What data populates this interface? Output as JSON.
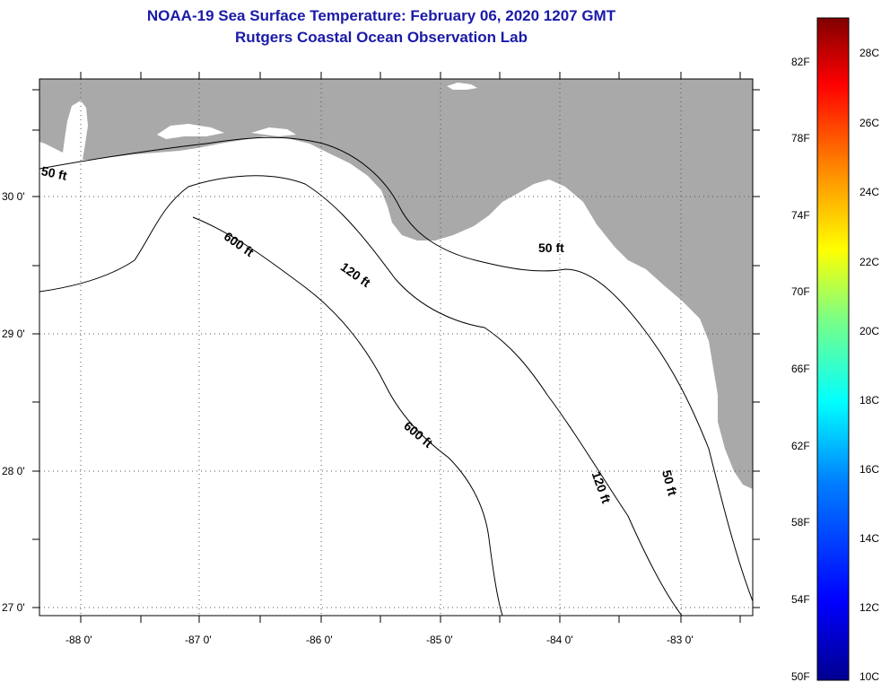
{
  "header": {
    "title": "NOAA-19 Sea Surface Temperature:  February 06, 2020 1207 GMT",
    "subtitle": "Rutgers Coastal Ocean Observation Lab"
  },
  "map": {
    "lat_ticks": [
      "30 0'",
      "29 0'",
      "28 0'",
      "27 0'"
    ],
    "lon_ticks": [
      "-88 0'",
      "-87 0'",
      "-86 0'",
      "-85 0'",
      "-84 0'",
      "-83 0'"
    ],
    "lat_values": [
      30,
      29,
      28,
      27
    ],
    "lon_values": [
      -88,
      -87,
      -86,
      -85,
      -84,
      -83
    ],
    "lon_range": [
      -88.3,
      -82.5
    ],
    "lat_range": [
      26.95,
      30.85
    ],
    "grid": "dotted",
    "depth_contour_labels": [
      "50 ft",
      "600 ft",
      "120 ft",
      "50 ft",
      "600 ft",
      "120 ft",
      "50 ft"
    ],
    "colors": {
      "land": "#a9a9a9",
      "ocean_nodata": "#ffffff",
      "contour": "#000000"
    }
  },
  "colorbar": {
    "fahrenheit_labels": [
      "82F",
      "78F",
      "74F",
      "70F",
      "66F",
      "62F",
      "58F",
      "54F",
      "50F"
    ],
    "celsius_labels": [
      "28C",
      "26C",
      "24C",
      "22C",
      "20C",
      "18C",
      "16C",
      "14C",
      "12C",
      "10C"
    ],
    "range_c": [
      10,
      29
    ],
    "colormap": [
      "#00008f",
      "#0000ff",
      "#0080ff",
      "#00ffff",
      "#80ff80",
      "#ffff00",
      "#ff8000",
      "#ff0000",
      "#800000"
    ]
  }
}
